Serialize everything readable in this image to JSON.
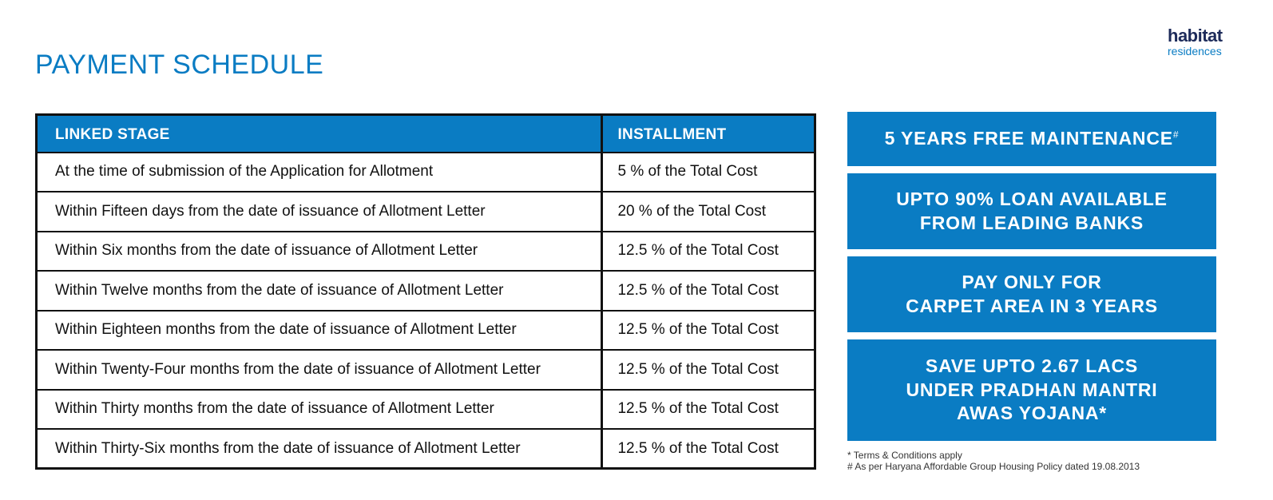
{
  "page_title": "PAYMENT SCHEDULE",
  "logo": {
    "line1": "habitat",
    "line2": "residences"
  },
  "table": {
    "headers": [
      "LINKED STAGE",
      "INSTALLMENT"
    ],
    "rows": [
      [
        "At the time of submission of the Application for Allotment",
        "5 % of the Total Cost"
      ],
      [
        "Within Fifteen days from the date of issuance of Allotment Letter",
        "20 % of the Total Cost"
      ],
      [
        "Within Six months from the date of issuance of Allotment Letter",
        "12.5 % of the Total Cost"
      ],
      [
        "Within Twelve months from the date of issuance of Allotment Letter",
        "12.5 % of the Total Cost"
      ],
      [
        "Within Eighteen months from the date of issuance of Allotment Letter",
        "12.5 % of the Total Cost"
      ],
      [
        "Within Twenty-Four months from the date of issuance of Allotment Letter",
        "12.5 % of the Total Cost"
      ],
      [
        "Within Thirty months from the date of issuance of Allotment Letter",
        "12.5 % of the Total Cost"
      ],
      [
        "Within Thirty-Six months from the date of issuance of Allotment Letter",
        "12.5 % of the Total Cost"
      ]
    ]
  },
  "features": {
    "f1": {
      "text": "5 YEARS FREE MAINTENANCE",
      "mark": "#"
    },
    "f2": {
      "line1": "UPTO 90% LOAN AVAILABLE",
      "line2": "FROM LEADING BANKS"
    },
    "f3": {
      "line1": "PAY ONLY FOR",
      "line2": "CARPET AREA IN 3 YEARS"
    },
    "f4": {
      "line1": "SAVE UPTO 2.67 LACS",
      "line2": "UNDER PRADHAN MANTRI",
      "line3": "AWAS YOJANA*"
    }
  },
  "notes": {
    "n1": "*  Terms & Conditions apply",
    "n2": "#  As per Haryana Affordable Group Housing Policy dated 19.08.2013"
  },
  "colors": {
    "accent": "#0a7cc3",
    "logo_dark": "#1d2b5a"
  }
}
